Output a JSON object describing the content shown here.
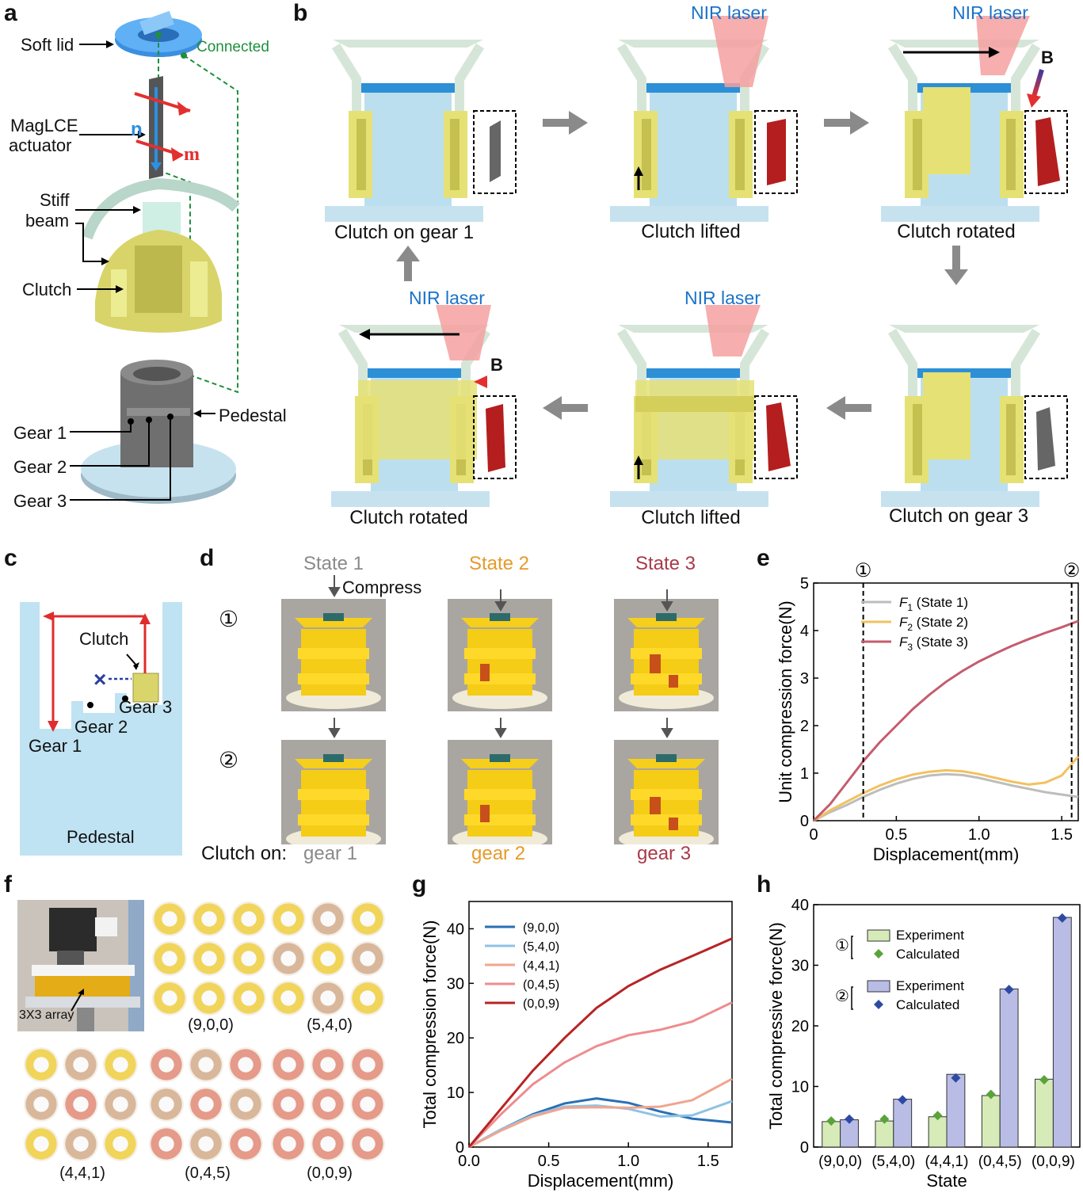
{
  "panel_letters": {
    "a": "a",
    "b": "b",
    "c": "c",
    "d": "d",
    "e": "e",
    "f": "f",
    "g": "g",
    "h": "h"
  },
  "panel_a": {
    "labels": [
      "Soft lid",
      "MagLCE",
      "actuator",
      "Stiff",
      "beam",
      "Clutch",
      "Pedestal",
      "Gear 1",
      "Gear 2",
      "Gear 3"
    ],
    "connected": "Connected",
    "n": "n",
    "m": "m"
  },
  "panel_b": {
    "nir": "NIR laser",
    "b_field": "B",
    "captions": [
      "Clutch on gear 1",
      "Clutch lifted",
      "Clutch rotated",
      "Clutch on gear 3",
      "Clutch lifted",
      "Clutch rotated"
    ]
  },
  "panel_c": {
    "labels": [
      "Clutch",
      "Gear 3",
      "Gear 2",
      "Gear 1",
      "Pedestal"
    ],
    "blocked": "×"
  },
  "panel_d": {
    "states": [
      "State 1",
      "State 2",
      "State 3"
    ],
    "state_colors": [
      "#8a8a8a",
      "#e69a2a",
      "#a83a4a"
    ],
    "compress": "Compress",
    "row_markers": [
      "①",
      "②"
    ],
    "clutch_on": "Clutch on:",
    "gears": [
      "gear 1",
      "gear 2",
      "gear 3"
    ]
  },
  "panel_e": {
    "chart_data": {
      "type": "line",
      "xlabel": "Displacement(mm)",
      "ylabel": "Unit compression force(N)",
      "xlim": [
        0,
        1.6
      ],
      "ylim": [
        0,
        5
      ],
      "xticks": [
        0,
        0.5,
        1.0,
        1.5
      ],
      "xtick_labels": [
        "0",
        "0.5",
        "1.0",
        "1.5"
      ],
      "yticks": [
        0,
        1,
        2,
        3,
        4,
        5
      ],
      "markers": [
        {
          "x": 0.3,
          "label": "①"
        },
        {
          "x": 1.56,
          "label": "②"
        }
      ],
      "legend_position": "top",
      "series": [
        {
          "name": "F1 (State 1)",
          "color": "#bdbdbd",
          "x": [
            0,
            0.1,
            0.2,
            0.3,
            0.4,
            0.5,
            0.6,
            0.7,
            0.8,
            0.9,
            1.0,
            1.1,
            1.2,
            1.3,
            1.4,
            1.5,
            1.6
          ],
          "y": [
            0,
            0.18,
            0.33,
            0.5,
            0.65,
            0.78,
            0.88,
            0.95,
            0.98,
            0.96,
            0.9,
            0.82,
            0.74,
            0.67,
            0.6,
            0.55,
            0.5
          ]
        },
        {
          "name": "F2 (State 2)",
          "color": "#f2c161",
          "x": [
            0,
            0.1,
            0.2,
            0.3,
            0.4,
            0.5,
            0.6,
            0.7,
            0.8,
            0.9,
            1.0,
            1.1,
            1.2,
            1.3,
            1.4,
            1.5,
            1.6
          ],
          "y": [
            0,
            0.22,
            0.4,
            0.58,
            0.74,
            0.87,
            0.97,
            1.03,
            1.06,
            1.04,
            0.98,
            0.9,
            0.82,
            0.76,
            0.8,
            0.95,
            1.35
          ]
        },
        {
          "name": "F3 (State 3)",
          "color": "#c45c6e",
          "x": [
            0,
            0.1,
            0.2,
            0.3,
            0.4,
            0.5,
            0.6,
            0.7,
            0.8,
            0.9,
            1.0,
            1.1,
            1.2,
            1.3,
            1.4,
            1.5,
            1.6
          ],
          "y": [
            0,
            0.35,
            0.8,
            1.25,
            1.65,
            2.0,
            2.35,
            2.65,
            2.92,
            3.15,
            3.35,
            3.52,
            3.68,
            3.82,
            3.95,
            4.07,
            4.2
          ]
        }
      ]
    },
    "legend_names": [
      {
        "f": "F",
        "sub": "1",
        "rest": " (State 1)"
      },
      {
        "f": "F",
        "sub": "2",
        "rest": " (State 2)"
      },
      {
        "f": "F",
        "sub": "3",
        "rest": " (State 3)"
      }
    ]
  },
  "panel_f": {
    "array_label": "3X3 array",
    "grids": [
      {
        "label": "(9,0,0)",
        "cells": [
          1,
          1,
          1,
          1,
          1,
          1,
          1,
          1,
          1
        ]
      },
      {
        "label": "(5,4,0)",
        "cells": [
          1,
          2,
          1,
          2,
          1,
          2,
          1,
          2,
          1
        ]
      },
      {
        "label": "(4,4,1)",
        "cells": [
          1,
          2,
          1,
          2,
          3,
          2,
          1,
          2,
          1
        ]
      },
      {
        "label": "(0,4,5)",
        "cells": [
          3,
          2,
          3,
          2,
          3,
          2,
          3,
          2,
          3
        ]
      },
      {
        "label": "(0,0,9)",
        "cells": [
          3,
          3,
          3,
          3,
          3,
          3,
          3,
          3,
          3
        ]
      }
    ],
    "cell_colors": {
      "1": "#f1d45a",
      "2": "#d9b79b",
      "3": "#e59a8a"
    }
  },
  "panel_g": {
    "chart_data": {
      "type": "line",
      "xlabel": "Displacement(mm)",
      "ylabel": "Total compression force(N)",
      "xlim": [
        0,
        1.65
      ],
      "ylim": [
        0,
        45
      ],
      "xticks": [
        0,
        0.5,
        1.0,
        1.5
      ],
      "xtick_labels": [
        "0.0",
        "0.5",
        "1.0",
        "1.5"
      ],
      "yticks": [
        0,
        10,
        20,
        30,
        40
      ],
      "legend_position": "top-left",
      "series": [
        {
          "name": "(9,0,0)",
          "color": "#2a6fb5",
          "x": [
            0,
            0.2,
            0.4,
            0.6,
            0.8,
            1.0,
            1.2,
            1.4,
            1.65
          ],
          "y": [
            0,
            3.2,
            6.0,
            8.0,
            8.9,
            8.1,
            6.5,
            5.2,
            4.5
          ]
        },
        {
          "name": "(5,4,0)",
          "color": "#8ec3e3",
          "x": [
            0,
            0.2,
            0.4,
            0.6,
            0.8,
            1.0,
            1.2,
            1.4,
            1.65
          ],
          "y": [
            0,
            3.2,
            5.8,
            7.4,
            7.6,
            7.0,
            5.6,
            5.8,
            8.4
          ]
        },
        {
          "name": "(4,4,1)",
          "color": "#f0a58f",
          "x": [
            0,
            0.2,
            0.4,
            0.6,
            0.8,
            1.0,
            1.2,
            1.4,
            1.65
          ],
          "y": [
            0,
            3.0,
            5.6,
            7.2,
            7.3,
            7.2,
            7.4,
            8.6,
            12.5
          ]
        },
        {
          "name": "(0,4,5)",
          "color": "#ee8c8f",
          "x": [
            0,
            0.2,
            0.4,
            0.6,
            0.8,
            1.0,
            1.2,
            1.4,
            1.65
          ],
          "y": [
            0,
            6.0,
            11.5,
            15.5,
            18.5,
            20.5,
            21.5,
            23.0,
            26.5
          ]
        },
        {
          "name": "(0,0,9)",
          "color": "#b82424",
          "x": [
            0,
            0.2,
            0.4,
            0.6,
            0.8,
            1.0,
            1.2,
            1.4,
            1.65
          ],
          "y": [
            0,
            7.0,
            14.0,
            20.0,
            25.5,
            29.5,
            32.5,
            35.0,
            38.2
          ]
        }
      ]
    }
  },
  "panel_h": {
    "chart_data": {
      "type": "bar",
      "xlabel": "State",
      "ylabel": "Total compressive force(N)",
      "categories": [
        "(9,0,0)",
        "(5,4,0)",
        "(4,4,1)",
        "(0,4,5)",
        "(0,0,9)"
      ],
      "ylim": [
        0,
        40
      ],
      "yticks": [
        0,
        10,
        20,
        30,
        40
      ],
      "series": [
        {
          "name": "Experiment",
          "group": "①",
          "color": "#d6ebb8",
          "values": [
            4.2,
            4.3,
            5.0,
            8.5,
            11.2
          ]
        },
        {
          "name": "Calculated",
          "group": "①",
          "color": "#5aa33a",
          "values": [
            4.3,
            4.6,
            5.2,
            8.7,
            11.1
          ]
        },
        {
          "name": "Experiment",
          "group": "②",
          "color": "#b9bde6",
          "values": [
            4.5,
            7.9,
            12.0,
            26.1,
            37.9
          ]
        },
        {
          "name": "Calculated",
          "group": "②",
          "color": "#2d4aa3",
          "values": [
            4.6,
            7.8,
            11.4,
            26.0,
            37.8
          ]
        }
      ],
      "legend_position": "top-left"
    }
  }
}
